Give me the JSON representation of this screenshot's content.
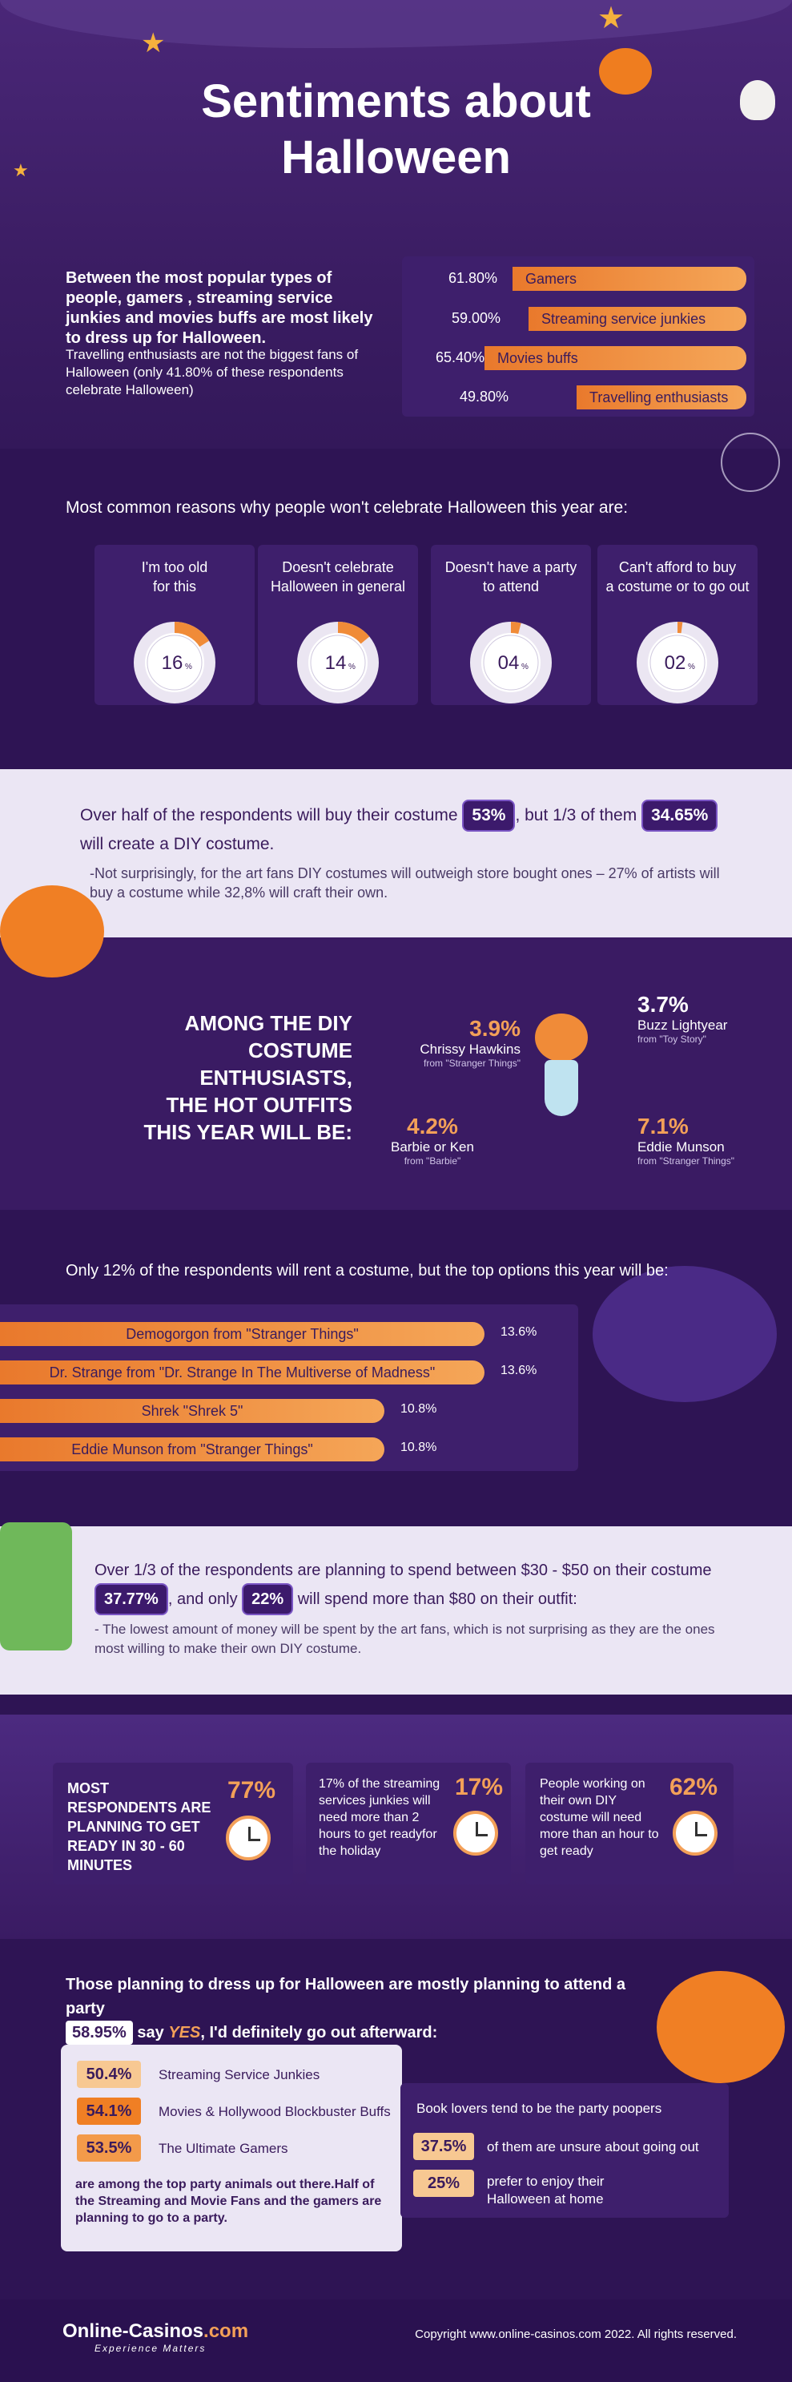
{
  "header": {
    "title_line1": "Sentiments about",
    "title_line2": "Halloween"
  },
  "dress_up": {
    "lead": "Between the most popular types of people, gamers , streaming service junkies and movies buffs are most likely to dress up for Halloween.",
    "note": "Travelling enthusiasts are not the biggest fans of Halloween (only 41.80% of these respondents celebrate Halloween)",
    "bars": [
      {
        "pct": "61.80%",
        "label": "Gamers",
        "value": 61.8
      },
      {
        "pct": "59.00%",
        "label": "Streaming service junkies",
        "value": 59.0
      },
      {
        "pct": "65.40%",
        "label": "Movies buffs",
        "value": 65.4
      },
      {
        "pct": "49.80%",
        "label": "Travelling enthusiasts",
        "value": 49.8
      }
    ]
  },
  "reasons": {
    "heading": "Most common reasons why people won't celebrate Halloween this year are:",
    "items": [
      {
        "line1": "I'm too old",
        "line2": "for this",
        "value": "16",
        "unit": "%",
        "fraction": 0.16
      },
      {
        "line1": "Doesn't celebrate",
        "line2": "Halloween in general",
        "value": "14",
        "unit": "%",
        "fraction": 0.14
      },
      {
        "line1": "Doesn't have a party",
        "line2": "to attend",
        "value": "04",
        "unit": "%",
        "fraction": 0.04
      },
      {
        "line1": "Can't afford to buy",
        "line2": "a costume or to go out",
        "value": "02",
        "unit": "%",
        "fraction": 0.02
      }
    ]
  },
  "costume": {
    "text1": "Over half of the respondents will buy their costume",
    "badge1": "53%",
    "text2": ", but 1/3 of them",
    "badge2": "34.65%",
    "text3": "will create a DIY costume.",
    "note": "-Not surprisingly, for the art fans DIY costumes will  outweigh store bought ones – 27% of artists will buy a costume while 32,8% will craft their own."
  },
  "diy": {
    "heading": [
      "AMONG THE DIY",
      "COSTUME",
      "ENTHUSIASTS,",
      "THE HOT OUTFITS",
      "THIS YEAR WILL BE:"
    ],
    "outfits": [
      {
        "pct": "3.9%",
        "name": "Chrissy Hawkins",
        "source": "from \"Stranger Things\""
      },
      {
        "pct": "3.7%",
        "name": "Buzz Lightyear",
        "source": "from \"Toy Story\""
      },
      {
        "pct": "4.2%",
        "name": "Barbie or Ken",
        "source": "from \"Barbie\""
      },
      {
        "pct": "7.1%",
        "name": "Eddie Munson",
        "source": "from \"Stranger Things\""
      }
    ]
  },
  "rent": {
    "heading": "Only 12% of the respondents will rent a costume, but the top options this year will be:",
    "items": [
      {
        "label": "Demogorgon from \"Stranger Things\"",
        "pct": "13.6%",
        "value": 13.6
      },
      {
        "label": "Dr. Strange from \"Dr. Strange In The Multiverse of Madness\"",
        "pct": "13.6%",
        "value": 13.6
      },
      {
        "label": "Shrek \"Shrek 5\"",
        "pct": "10.8%",
        "value": 10.8
      },
      {
        "label": "Eddie Munson from \"Stranger Things\"",
        "pct": "10.8%",
        "value": 10.8
      }
    ]
  },
  "spend": {
    "text1": "Over 1/3 of the respondents are planning to spend between $30 - $50 on their costume",
    "badge1": "37.77%",
    "text2": ", and only",
    "badge2": "22%",
    "text3": "will spend more than $80 on their outfit:",
    "note": "- The lowest amount of money will be spent by the art fans, which is not surprising as they are the ones most willing to make their own DIY costume."
  },
  "ready": [
    {
      "text": "MOST RESPONDENTS ARE PLANNING TO GET READY IN 30 - 60 MINUTES",
      "pct": "77%"
    },
    {
      "text": "17% of the streaming services junkies will need more than 2 hours to get readyfor the holiday",
      "pct": "17%"
    },
    {
      "text": "People working on their own DIY costume will need more than an hour to get ready",
      "pct": "62%"
    }
  ],
  "party": {
    "heading": "Those planning to dress up for Halloween are mostly planning to attend a party",
    "badge": "58.95%",
    "say": "say",
    "yes": "YES",
    "rest": ", I'd definitely go out afterward:",
    "groups": [
      {
        "pct": "50.4%",
        "label": "Streaming Service Junkies"
      },
      {
        "pct": "54.1%",
        "label": "Movies & Hollywood Blockbuster Buffs"
      },
      {
        "pct": "53.5%",
        "label": "The Ultimate Gamers"
      }
    ],
    "groups_note": "are among the top party animals out there.Half of the Streaming and Movie Fans and the gamers are planning to go to a party.",
    "book_heading": "Book lovers tend to be the party poopers",
    "book_items": [
      {
        "pct": "37.5%",
        "label": "of them are unsure about going out"
      },
      {
        "pct": "25%",
        "label": "prefer to enjoy their Halloween at home"
      }
    ]
  },
  "footer": {
    "brand": "Online-Casinos",
    "brand_suffix": ".com",
    "tagline": "Experience Matters",
    "copyright": "Copyright www.online-casinos.com 2022. All rights reserved."
  },
  "colors": {
    "bg": "#2e1454",
    "card": "#3e1f6c",
    "accent": "#f08b38",
    "light_panel": "#ebe6f4"
  }
}
